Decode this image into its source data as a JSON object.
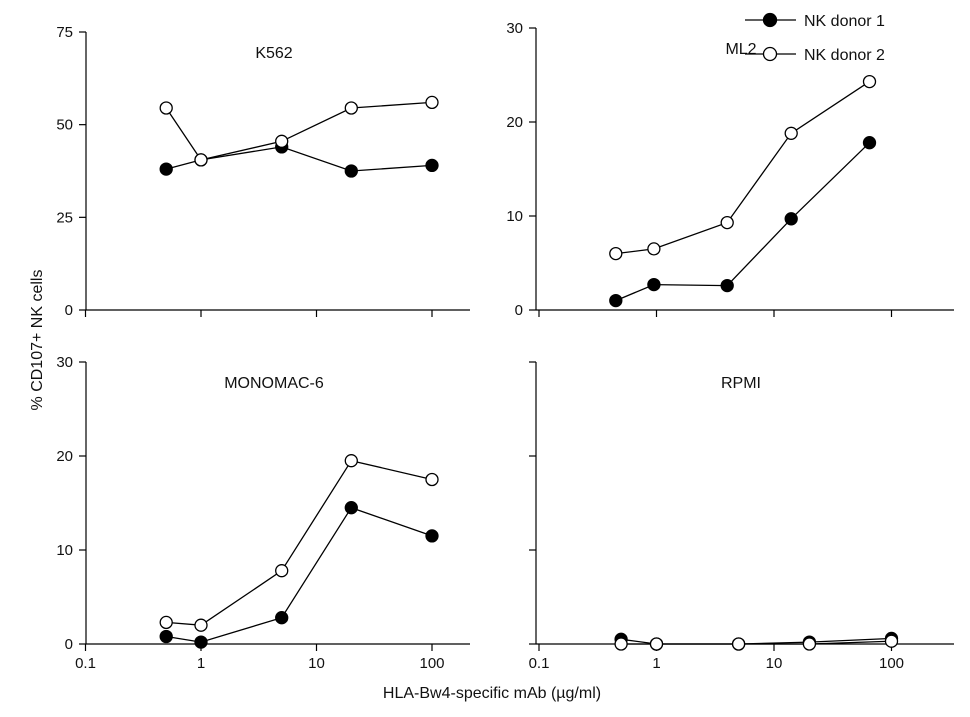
{
  "figure": {
    "ylabel": "% CD107+ NK cells",
    "xlabel": "HLA-Bw4-specific mAb (µg/ml)"
  },
  "legend": {
    "items": [
      {
        "label": "NK donor 1",
        "marker": "filled"
      },
      {
        "label": "NK donor 2",
        "marker": "open"
      }
    ]
  },
  "chart_data": [
    {
      "type": "line",
      "title": "K562",
      "xscale": "log",
      "xlim": [
        0.1,
        200
      ],
      "ylim": [
        0,
        75
      ],
      "xticks": [
        0.1,
        1,
        10,
        100
      ],
      "xtick_labels": [
        "",
        "",
        "",
        ""
      ],
      "yticks": [
        0,
        25,
        50,
        75
      ],
      "ytick_labels": [
        "0",
        "25",
        "50",
        "75"
      ],
      "series": [
        {
          "name": "NK donor 1",
          "marker": "filled",
          "x": [
            0.5,
            1,
            5,
            20,
            100
          ],
          "y": [
            38,
            40.5,
            44,
            37.5,
            39
          ]
        },
        {
          "name": "NK donor 2",
          "marker": "open",
          "x": [
            0.5,
            1,
            5,
            20,
            100
          ],
          "y": [
            54.5,
            40.5,
            45.5,
            54.5,
            56
          ]
        }
      ]
    },
    {
      "type": "line",
      "title": "ML2",
      "xscale": "log",
      "xlim": [
        0.1,
        200
      ],
      "ylim": [
        0,
        30
      ],
      "xticks": [
        0.1,
        1,
        10,
        100
      ],
      "xtick_labels": [
        "",
        "",
        "",
        ""
      ],
      "yticks": [
        0,
        10,
        20,
        30
      ],
      "ytick_labels": [
        "0",
        "10",
        "20",
        "30"
      ],
      "series": [
        {
          "name": "NK donor 1",
          "marker": "filled",
          "x": [
            0.45,
            0.95,
            4,
            14,
            65
          ],
          "y": [
            1,
            2.7,
            2.6,
            9.7,
            17.8
          ]
        },
        {
          "name": "NK donor 2",
          "marker": "open",
          "x": [
            0.45,
            0.95,
            4,
            14,
            65
          ],
          "y": [
            6,
            6.5,
            9.3,
            18.8,
            24.3
          ]
        }
      ]
    },
    {
      "type": "line",
      "title": "MONOMAC-6",
      "xscale": "log",
      "xlim": [
        0.1,
        200
      ],
      "ylim": [
        0,
        30
      ],
      "xticks": [
        0.1,
        1,
        10,
        100
      ],
      "xtick_labels": [
        "0.1",
        "1",
        "10",
        "100"
      ],
      "yticks": [
        0,
        10,
        20,
        30
      ],
      "ytick_labels": [
        "0",
        "10",
        "20",
        "30"
      ],
      "series": [
        {
          "name": "NK donor 1",
          "marker": "filled",
          "x": [
            0.5,
            1,
            5,
            20,
            100
          ],
          "y": [
            0.8,
            0.2,
            2.8,
            14.5,
            11.5
          ]
        },
        {
          "name": "NK donor 2",
          "marker": "open",
          "x": [
            0.5,
            1,
            5,
            20,
            100
          ],
          "y": [
            2.3,
            2,
            7.8,
            19.5,
            17.5
          ]
        }
      ]
    },
    {
      "type": "line",
      "title": "RPMI",
      "xscale": "log",
      "xlim": [
        0.1,
        200
      ],
      "ylim": [
        0,
        30
      ],
      "xticks": [
        0.1,
        1,
        10,
        100
      ],
      "xtick_labels": [
        "0.1",
        "1",
        "10",
        "100"
      ],
      "yticks": [
        0,
        10,
        20,
        30
      ],
      "ytick_labels": [
        "",
        "",
        "",
        ""
      ],
      "series": [
        {
          "name": "NK donor 1",
          "marker": "filled",
          "x": [
            0.5,
            1,
            5,
            20,
            100
          ],
          "y": [
            0.5,
            0,
            0,
            0.2,
            0.6
          ]
        },
        {
          "name": "NK donor 2",
          "marker": "open",
          "x": [
            0.5,
            1,
            5,
            20,
            100
          ],
          "y": [
            0,
            0,
            0,
            0,
            0.3
          ]
        }
      ]
    }
  ]
}
